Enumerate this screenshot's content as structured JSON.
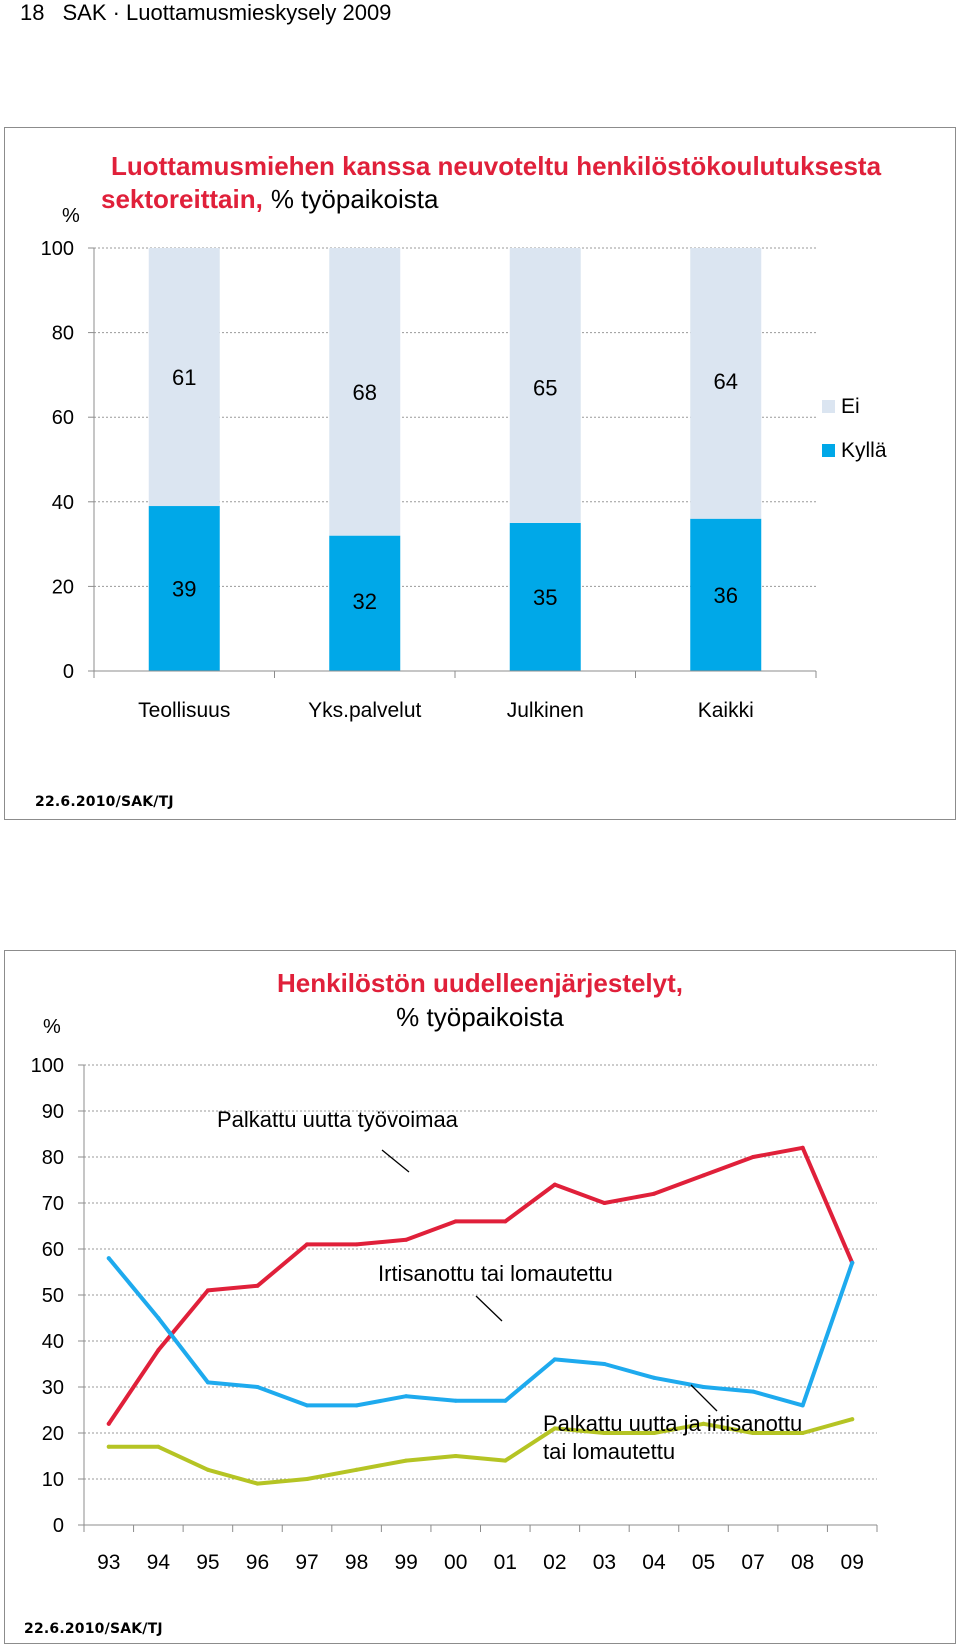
{
  "page_header": {
    "page_number": "18",
    "publication": "SAK · Luottamusmieskysely 2009"
  },
  "chart_data": [
    {
      "type": "bar",
      "stacked": true,
      "title_red": "Luottamusmiehen kanssa neuvoteltu henkilöstökoulutuksesta sektoreittain,",
      "title_black": "% työpaikoista",
      "unit_label": "%",
      "categories": [
        "Teollisuus",
        "Yks.palvelut",
        "Julkinen",
        "Kaikki"
      ],
      "series": [
        {
          "name": "Kyllä",
          "color": "#00a8e8",
          "values": [
            39,
            32,
            35,
            36
          ]
        },
        {
          "name": "Ei",
          "color": "#dbe5f1",
          "values": [
            61,
            68,
            65,
            64
          ]
        }
      ],
      "ylim": [
        0,
        100
      ],
      "yticks": [
        0,
        20,
        40,
        60,
        80,
        100
      ],
      "grid": true,
      "legend_position": "right",
      "footer": "22.6.2010/SAK/TJ"
    },
    {
      "type": "line",
      "title_red": "Henkilöstön uudelleenjärjestelyt,",
      "title_black": "% työpaikoista",
      "unit_label": "%",
      "x": [
        "93",
        "94",
        "95",
        "96",
        "97",
        "98",
        "99",
        "00",
        "01",
        "02",
        "03",
        "04",
        "05",
        "07",
        "08",
        "09"
      ],
      "series": [
        {
          "name": "Palkattu uutta työvoimaa",
          "color": "#e0203a",
          "values": [
            22,
            38,
            51,
            52,
            61,
            61,
            62,
            66,
            66,
            74,
            70,
            72,
            76,
            80,
            82,
            57
          ]
        },
        {
          "name": "Irtisanottu tai lomautettu",
          "color": "#1eaaee",
          "values": [
            58,
            45,
            31,
            30,
            26,
            26,
            28,
            27,
            27,
            36,
            35,
            32,
            30,
            29,
            26,
            57
          ]
        },
        {
          "name": "Palkattu uutta ja irtisanottu tai lomautettu",
          "color": "#b5c424",
          "values": [
            17,
            17,
            12,
            9,
            10,
            12,
            14,
            15,
            14,
            21,
            20,
            20,
            22,
            20,
            20,
            23
          ]
        }
      ],
      "annotations": [
        {
          "lines": [
            "Palkattu uutta työvoimaa"
          ],
          "series_index": 0
        },
        {
          "lines": [
            "Irtisanottu tai lomautettu"
          ],
          "series_index": 1
        },
        {
          "lines": [
            "Palkattu uutta ja irtisanottu",
            "tai lomautettu"
          ],
          "series_index": 2
        }
      ],
      "ylim": [
        0,
        100
      ],
      "yticks": [
        0,
        10,
        20,
        30,
        40,
        50,
        60,
        70,
        80,
        90,
        100
      ],
      "grid": true,
      "footer": "22.6.2010/SAK/TJ"
    }
  ]
}
